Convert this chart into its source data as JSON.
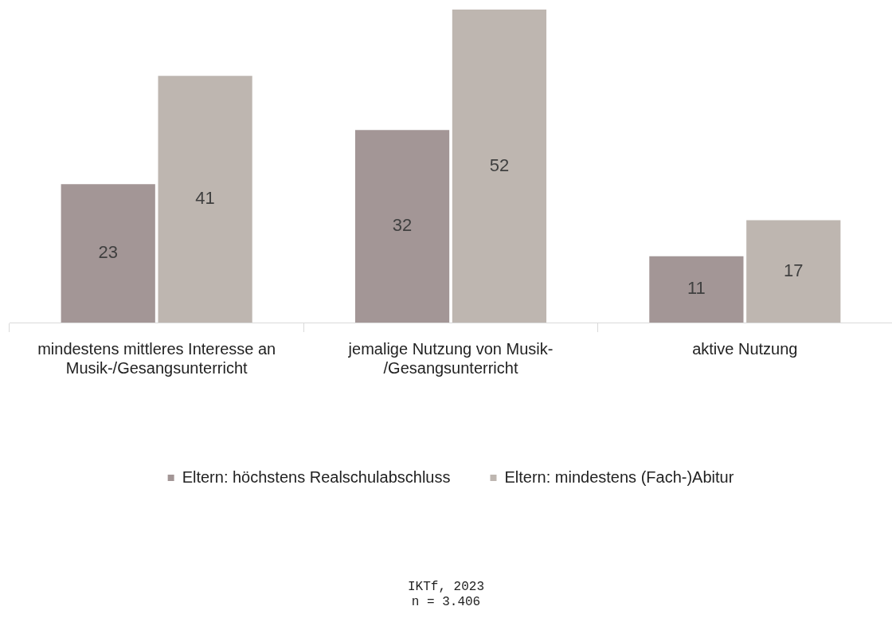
{
  "chart_data": {
    "type": "bar",
    "categories": [
      "mindestens mittleres Interesse an Musik-/Gesangsunterricht",
      "jemalige Nutzung von Musik-/Gesangsunterricht",
      "aktive Nutzung"
    ],
    "series": [
      {
        "name": "Eltern: höchstens Realschulabschluss",
        "color": "#a39696",
        "values": [
          23,
          32,
          11
        ]
      },
      {
        "name": "Eltern: mindestens (Fach-)Abitur",
        "color": "#beb6b0",
        "values": [
          41,
          52,
          17
        ]
      }
    ],
    "data_labels": true,
    "legend": "bottom",
    "annotations": [
      "IKTf, 2023",
      "n = 3.406"
    ]
  }
}
